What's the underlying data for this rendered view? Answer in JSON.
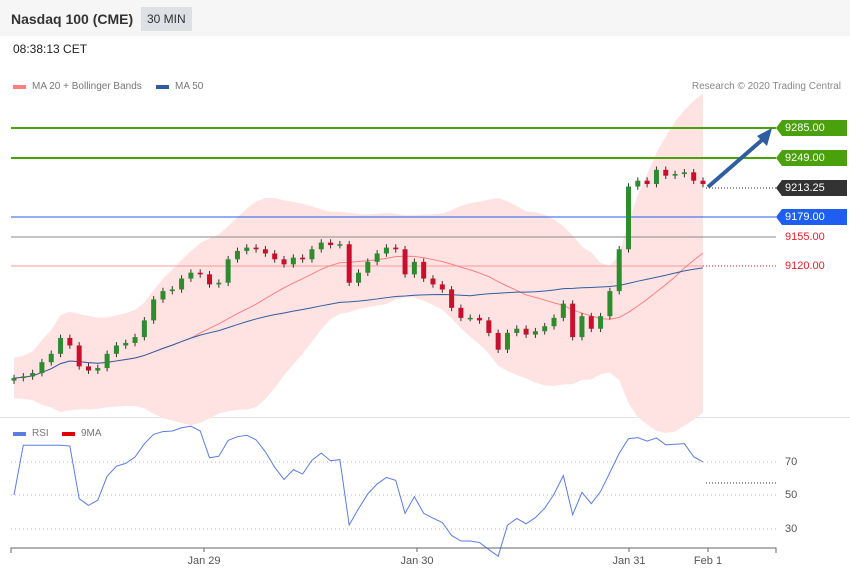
{
  "header": {
    "title": "Nasdaq 100 (CME)",
    "timeframe": "30 MIN",
    "time": "08:38:13 CET"
  },
  "legend": {
    "ma20": "MA 20 + Bollinger Bands",
    "ma50": "MA 50",
    "credit": "Research © 2020 Trading Central",
    "rsi": "RSI",
    "ma9": "9MA"
  },
  "colors": {
    "resistance": "#4aa10c",
    "current": "#333333",
    "pivot": "#1e5ef0",
    "support": "#e8202a",
    "ma20": "#ff7f7f",
    "ma50": "#2f5ea0",
    "rsi": "#5b7de0",
    "ma9": "#e00000",
    "band": "#ffe3e3"
  },
  "levels": {
    "r2": "9285.00",
    "r1": "9249.00",
    "current": "9213.25",
    "pivot": "9179.00",
    "s1": "9155.00",
    "s2": "9120.00"
  },
  "chart_data": {
    "type": "candlestick",
    "title": "Nasdaq 100 (CME) 30 MIN",
    "x_labels": [
      "Jan 29",
      "Jan 30",
      "Jan 31",
      "Feb 1"
    ],
    "ylim": [
      8975,
      9305
    ],
    "closes": [
      8986,
      8988,
      8992,
      9005,
      9015,
      9034,
      9025,
      9000,
      8995,
      8998,
      9015,
      9025,
      9028,
      9035,
      9055,
      9080,
      9090,
      9092,
      9105,
      9112,
      9110,
      9098,
      9100,
      9128,
      9138,
      9142,
      9140,
      9135,
      9128,
      9122,
      9130,
      9128,
      9140,
      9148,
      9145,
      9146,
      9100,
      9112,
      9125,
      9135,
      9142,
      9140,
      9110,
      9125,
      9105,
      9098,
      9092,
      9070,
      9058,
      9058,
      9055,
      9040,
      9020,
      9040,
      9045,
      9038,
      9042,
      9048,
      9058,
      9075,
      9035,
      9060,
      9045,
      9060,
      9090,
      9140,
      9215,
      9222,
      9218,
      9235,
      9228,
      9230,
      9232,
      9222,
      9218
    ],
    "rsi_levels": [
      "70",
      "50",
      "30"
    ],
    "target": 9285
  }
}
